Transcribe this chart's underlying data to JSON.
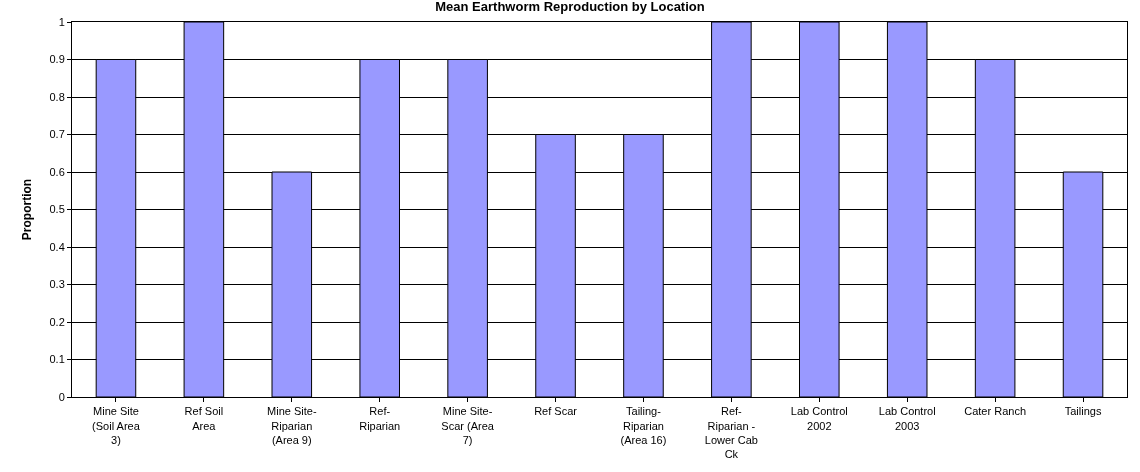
{
  "chart_data": {
    "type": "bar",
    "title": "Mean Earthworm Reproduction by Location",
    "ylabel": "Proportion",
    "categories": [
      "Mine Site (Soil Area 3)",
      "Ref Soil Area",
      "Mine Site-Riparian (Area 9)",
      "Ref-Riparian",
      "Mine Site-Scar (Area 7)",
      "Ref Scar",
      "Tailing-Riparian (Area 16)",
      "Ref-Riparian - Lower Cab Ck",
      "Lab Control 2002",
      "Lab Control 2003",
      "Cater Ranch",
      "Tailings"
    ],
    "values": [
      0.9,
      1,
      0.6,
      0.9,
      0.9,
      0.7,
      0.7,
      1,
      1,
      1,
      0.9,
      0.6
    ],
    "color": "#9999ff",
    "ylim": [
      0,
      1
    ],
    "yticks": [
      0,
      0.1,
      0.2,
      0.3,
      0.4,
      0.5,
      0.6,
      0.7,
      0.8,
      0.9,
      1
    ],
    "grid": "y"
  }
}
